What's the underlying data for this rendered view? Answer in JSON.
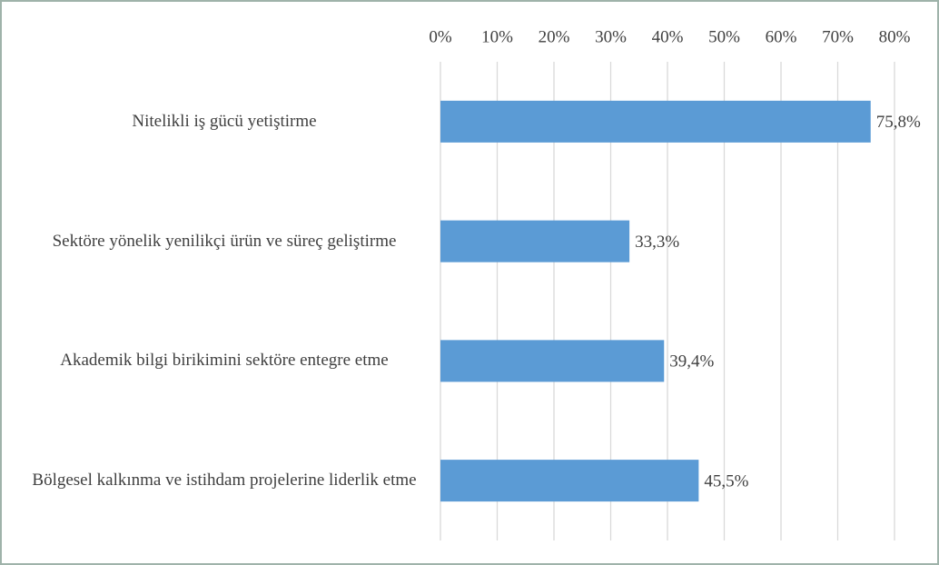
{
  "chart_data": {
    "type": "bar",
    "orientation": "horizontal",
    "categories": [
      "Nitelikli iş gücü yetiştirme",
      "Sektöre yönelik yenilikçi ürün ve süreç geliştirme",
      "Akademik bilgi birikimini sektöre entegre etme",
      "Bölgesel kalkınma ve istihdam projelerine liderlik etme"
    ],
    "values": [
      75.8,
      33.3,
      39.4,
      45.5
    ],
    "value_labels": [
      "75,8%",
      "33,3%",
      "39,4%",
      "45,5%"
    ],
    "color": "#5b9bd5",
    "xlim": [
      0,
      80
    ],
    "xticks": [
      {
        "value": 0,
        "label": "0%"
      },
      {
        "value": 10,
        "label": "10%"
      },
      {
        "value": 20,
        "label": "20%"
      },
      {
        "value": 30,
        "label": "30%"
      },
      {
        "value": 40,
        "label": "40%"
      },
      {
        "value": 50,
        "label": "50%"
      },
      {
        "value": 60,
        "label": "60%"
      },
      {
        "value": 70,
        "label": "70%"
      },
      {
        "value": 80,
        "label": "80%"
      }
    ],
    "grid": true
  }
}
